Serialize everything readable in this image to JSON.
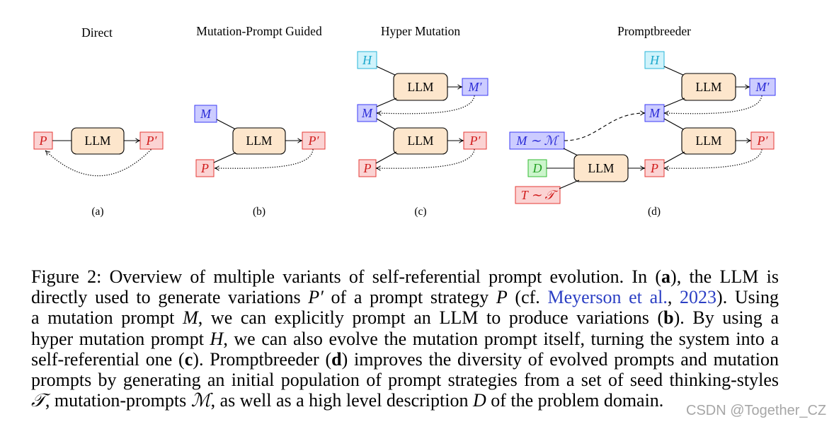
{
  "figure": {
    "panels": [
      {
        "title": "Direct",
        "label": "(a)"
      },
      {
        "title": "Mutation-Prompt Guided",
        "label": "(b)"
      },
      {
        "title": "Hyper Mutation",
        "label": "(c)"
      },
      {
        "title": "Promptbreeder",
        "label": "(d)"
      }
    ],
    "nodes": {
      "llm": "LLM",
      "prompt": "P",
      "prompt_mutated": "P′",
      "mutation_prompt": "M",
      "mutation_prompt_mutated": "M′",
      "hyper_mutation_prompt": "H",
      "mutation_prompt_sample": "M ∼ ℳ",
      "domain_description": "D",
      "thinking_style_sample": "T ∼ 𝒯"
    },
    "colors": {
      "red_fill": "#fbd3d3",
      "red_stroke": "#e53935",
      "red_text": "#d01c1c",
      "blue_fill": "#ccccff",
      "blue_stroke": "#3b3bf5",
      "blue_text": "#2b2bd6",
      "cyan_fill": "#d0f3fb",
      "cyan_stroke": "#29b6d9",
      "cyan_text": "#1da8cc",
      "green_fill": "#ccf5cc",
      "green_stroke": "#33bb33",
      "green_text": "#22a022",
      "llm_fill": "#fde6cc",
      "llm_stroke": "#000000",
      "link": "#2b3fc4",
      "watermark": "#a6a6a6"
    }
  },
  "caption": {
    "lines": [
      [
        "Figure 2: Overview of multiple variants of self-referential prompt evolution. In (",
        "a",
        "), the LLM is"
      ],
      [
        "directly used to generate variations ",
        "P′",
        " of a prompt strategy ",
        "P",
        " (cf. ",
        "Meyerson et al.",
        ", ",
        "2023",
        "). Using"
      ],
      [
        "a mutation prompt ",
        "M",
        ", we can explicitly prompt an LLM to produce variations (",
        "b",
        "). By using a"
      ],
      [
        "hyper mutation prompt ",
        "H",
        ", we can also evolve the mutation prompt itself, turning the system into a"
      ],
      [
        "self-referential one (",
        "c",
        "). Promptbreeder (",
        "d",
        ") improves the diversity of evolved prompts and mutation"
      ],
      [
        "prompts by generating an initial population of prompt strategies from a set of seed thinking-styles"
      ],
      [
        "𝒯",
        ", mutation-prompts ",
        "ℳ",
        ", as well as a high level description ",
        "D",
        " of the problem domain."
      ]
    ]
  },
  "watermark": "CSDN @Together_CZ"
}
